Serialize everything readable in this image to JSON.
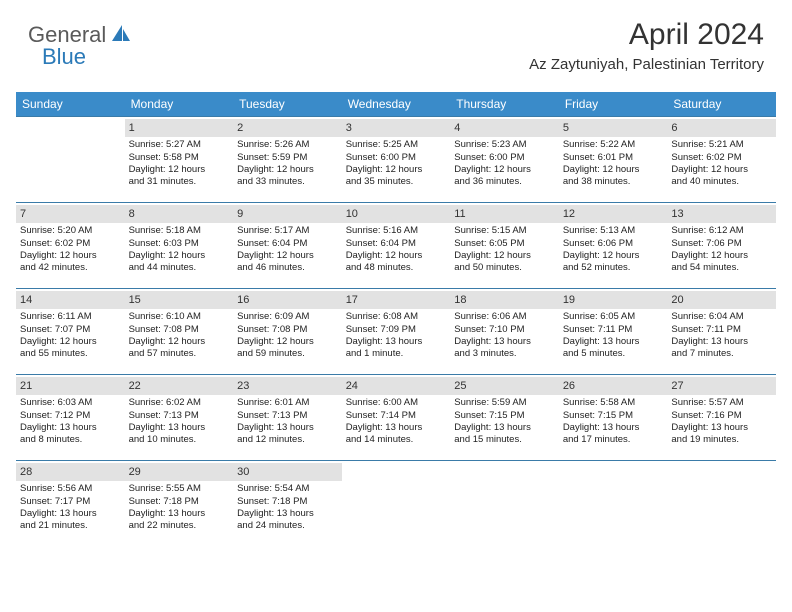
{
  "logo": {
    "part1": "General",
    "part2": "Blue"
  },
  "header": {
    "month_title": "April 2024",
    "location": "Az Zaytuniyah, Palestinian Territory"
  },
  "colors": {
    "header_bg": "#3a8bc9",
    "header_text": "#ffffff",
    "row_border": "#3a7ba8",
    "daynum_bg": "#e2e2e2",
    "logo_accent": "#2b7ab8",
    "logo_grey": "#5a5a5a",
    "page_bg": "#ffffff"
  },
  "weekdays": [
    "Sunday",
    "Monday",
    "Tuesday",
    "Wednesday",
    "Thursday",
    "Friday",
    "Saturday"
  ],
  "weeks": [
    [
      {
        "blank": true
      },
      {
        "day": "1",
        "sunrise": "Sunrise: 5:27 AM",
        "sunset": "Sunset: 5:58 PM",
        "daylight1": "Daylight: 12 hours",
        "daylight2": "and 31 minutes."
      },
      {
        "day": "2",
        "sunrise": "Sunrise: 5:26 AM",
        "sunset": "Sunset: 5:59 PM",
        "daylight1": "Daylight: 12 hours",
        "daylight2": "and 33 minutes."
      },
      {
        "day": "3",
        "sunrise": "Sunrise: 5:25 AM",
        "sunset": "Sunset: 6:00 PM",
        "daylight1": "Daylight: 12 hours",
        "daylight2": "and 35 minutes."
      },
      {
        "day": "4",
        "sunrise": "Sunrise: 5:23 AM",
        "sunset": "Sunset: 6:00 PM",
        "daylight1": "Daylight: 12 hours",
        "daylight2": "and 36 minutes."
      },
      {
        "day": "5",
        "sunrise": "Sunrise: 5:22 AM",
        "sunset": "Sunset: 6:01 PM",
        "daylight1": "Daylight: 12 hours",
        "daylight2": "and 38 minutes."
      },
      {
        "day": "6",
        "sunrise": "Sunrise: 5:21 AM",
        "sunset": "Sunset: 6:02 PM",
        "daylight1": "Daylight: 12 hours",
        "daylight2": "and 40 minutes."
      }
    ],
    [
      {
        "day": "7",
        "sunrise": "Sunrise: 5:20 AM",
        "sunset": "Sunset: 6:02 PM",
        "daylight1": "Daylight: 12 hours",
        "daylight2": "and 42 minutes."
      },
      {
        "day": "8",
        "sunrise": "Sunrise: 5:18 AM",
        "sunset": "Sunset: 6:03 PM",
        "daylight1": "Daylight: 12 hours",
        "daylight2": "and 44 minutes."
      },
      {
        "day": "9",
        "sunrise": "Sunrise: 5:17 AM",
        "sunset": "Sunset: 6:04 PM",
        "daylight1": "Daylight: 12 hours",
        "daylight2": "and 46 minutes."
      },
      {
        "day": "10",
        "sunrise": "Sunrise: 5:16 AM",
        "sunset": "Sunset: 6:04 PM",
        "daylight1": "Daylight: 12 hours",
        "daylight2": "and 48 minutes."
      },
      {
        "day": "11",
        "sunrise": "Sunrise: 5:15 AM",
        "sunset": "Sunset: 6:05 PM",
        "daylight1": "Daylight: 12 hours",
        "daylight2": "and 50 minutes."
      },
      {
        "day": "12",
        "sunrise": "Sunrise: 5:13 AM",
        "sunset": "Sunset: 6:06 PM",
        "daylight1": "Daylight: 12 hours",
        "daylight2": "and 52 minutes."
      },
      {
        "day": "13",
        "sunrise": "Sunrise: 6:12 AM",
        "sunset": "Sunset: 7:06 PM",
        "daylight1": "Daylight: 12 hours",
        "daylight2": "and 54 minutes."
      }
    ],
    [
      {
        "day": "14",
        "sunrise": "Sunrise: 6:11 AM",
        "sunset": "Sunset: 7:07 PM",
        "daylight1": "Daylight: 12 hours",
        "daylight2": "and 55 minutes."
      },
      {
        "day": "15",
        "sunrise": "Sunrise: 6:10 AM",
        "sunset": "Sunset: 7:08 PM",
        "daylight1": "Daylight: 12 hours",
        "daylight2": "and 57 minutes."
      },
      {
        "day": "16",
        "sunrise": "Sunrise: 6:09 AM",
        "sunset": "Sunset: 7:08 PM",
        "daylight1": "Daylight: 12 hours",
        "daylight2": "and 59 minutes."
      },
      {
        "day": "17",
        "sunrise": "Sunrise: 6:08 AM",
        "sunset": "Sunset: 7:09 PM",
        "daylight1": "Daylight: 13 hours",
        "daylight2": "and 1 minute."
      },
      {
        "day": "18",
        "sunrise": "Sunrise: 6:06 AM",
        "sunset": "Sunset: 7:10 PM",
        "daylight1": "Daylight: 13 hours",
        "daylight2": "and 3 minutes."
      },
      {
        "day": "19",
        "sunrise": "Sunrise: 6:05 AM",
        "sunset": "Sunset: 7:11 PM",
        "daylight1": "Daylight: 13 hours",
        "daylight2": "and 5 minutes."
      },
      {
        "day": "20",
        "sunrise": "Sunrise: 6:04 AM",
        "sunset": "Sunset: 7:11 PM",
        "daylight1": "Daylight: 13 hours",
        "daylight2": "and 7 minutes."
      }
    ],
    [
      {
        "day": "21",
        "sunrise": "Sunrise: 6:03 AM",
        "sunset": "Sunset: 7:12 PM",
        "daylight1": "Daylight: 13 hours",
        "daylight2": "and 8 minutes."
      },
      {
        "day": "22",
        "sunrise": "Sunrise: 6:02 AM",
        "sunset": "Sunset: 7:13 PM",
        "daylight1": "Daylight: 13 hours",
        "daylight2": "and 10 minutes."
      },
      {
        "day": "23",
        "sunrise": "Sunrise: 6:01 AM",
        "sunset": "Sunset: 7:13 PM",
        "daylight1": "Daylight: 13 hours",
        "daylight2": "and 12 minutes."
      },
      {
        "day": "24",
        "sunrise": "Sunrise: 6:00 AM",
        "sunset": "Sunset: 7:14 PM",
        "daylight1": "Daylight: 13 hours",
        "daylight2": "and 14 minutes."
      },
      {
        "day": "25",
        "sunrise": "Sunrise: 5:59 AM",
        "sunset": "Sunset: 7:15 PM",
        "daylight1": "Daylight: 13 hours",
        "daylight2": "and 15 minutes."
      },
      {
        "day": "26",
        "sunrise": "Sunrise: 5:58 AM",
        "sunset": "Sunset: 7:15 PM",
        "daylight1": "Daylight: 13 hours",
        "daylight2": "and 17 minutes."
      },
      {
        "day": "27",
        "sunrise": "Sunrise: 5:57 AM",
        "sunset": "Sunset: 7:16 PM",
        "daylight1": "Daylight: 13 hours",
        "daylight2": "and 19 minutes."
      }
    ],
    [
      {
        "day": "28",
        "sunrise": "Sunrise: 5:56 AM",
        "sunset": "Sunset: 7:17 PM",
        "daylight1": "Daylight: 13 hours",
        "daylight2": "and 21 minutes."
      },
      {
        "day": "29",
        "sunrise": "Sunrise: 5:55 AM",
        "sunset": "Sunset: 7:18 PM",
        "daylight1": "Daylight: 13 hours",
        "daylight2": "and 22 minutes."
      },
      {
        "day": "30",
        "sunrise": "Sunrise: 5:54 AM",
        "sunset": "Sunset: 7:18 PM",
        "daylight1": "Daylight: 13 hours",
        "daylight2": "and 24 minutes."
      },
      {
        "blank": true
      },
      {
        "blank": true
      },
      {
        "blank": true
      },
      {
        "blank": true
      }
    ]
  ]
}
